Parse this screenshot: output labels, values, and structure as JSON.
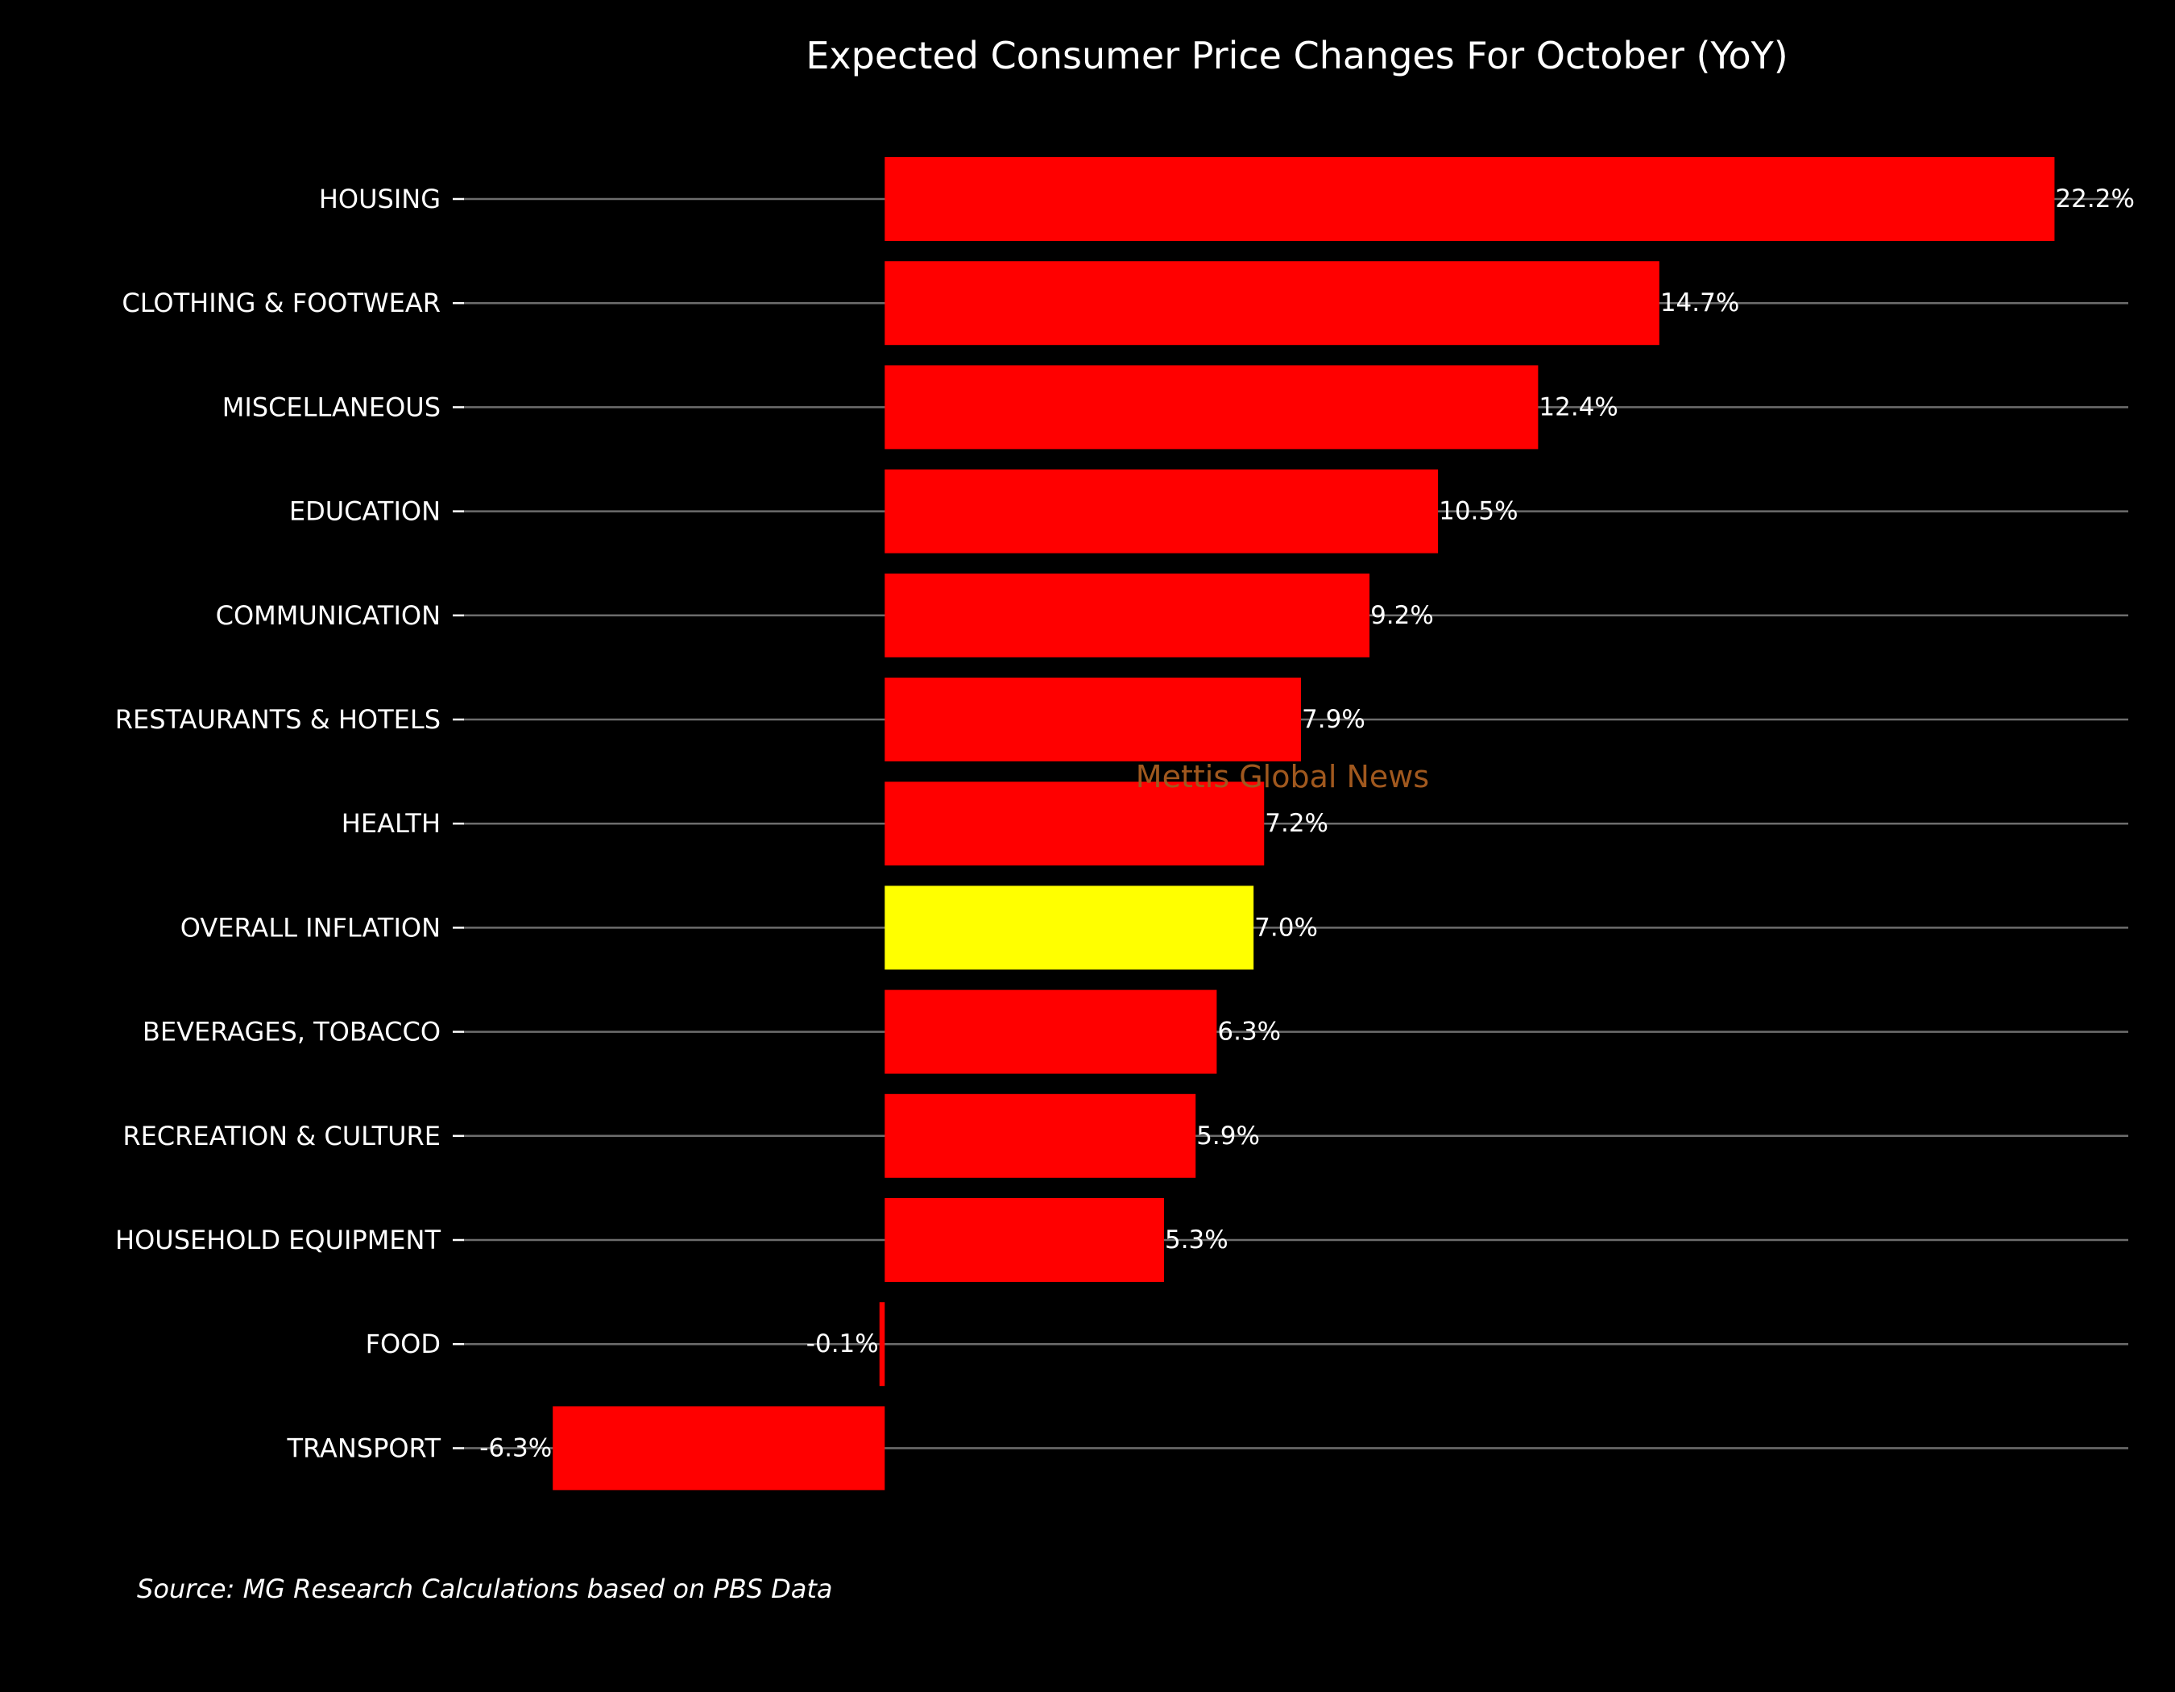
{
  "chart_data": {
    "type": "bar",
    "orientation": "horizontal",
    "title": "Expected Consumer Price Changes For October (YoY)",
    "categories": [
      "HOUSING",
      "CLOTHING & FOOTWEAR",
      "MISCELLANEOUS",
      "EDUCATION",
      "COMMUNICATION",
      "RESTAURANTS & HOTELS",
      "HEALTH",
      "OVERALL INFLATION",
      "BEVERAGES, TOBACCO",
      "RECREATION & CULTURE",
      "HOUSEHOLD EQUIPMENT",
      "FOOD",
      "TRANSPORT"
    ],
    "values": [
      22.2,
      14.7,
      12.4,
      10.5,
      9.2,
      7.9,
      7.2,
      7.0,
      6.3,
      5.9,
      5.3,
      -0.1,
      -6.3
    ],
    "value_labels": [
      "22.2%",
      "14.7%",
      "12.4%",
      "10.5%",
      "9.2%",
      "7.9%",
      "7.2%",
      "7.0%",
      "6.3%",
      "5.9%",
      "5.3%",
      "-0.1%",
      "-6.3%"
    ],
    "highlight_category": "OVERALL INFLATION",
    "xlim": [
      -8,
      23.6
    ],
    "grid": "horizontal",
    "colors": {
      "background": "#000000",
      "bar": "#ff0000",
      "highlight_bar": "#ffff00",
      "text": "#ffffff",
      "grid": "#808080",
      "watermark": "#a0581e"
    }
  },
  "watermark": "Mettis Global News",
  "source": "Source: MG Research Calculations based on PBS Data"
}
